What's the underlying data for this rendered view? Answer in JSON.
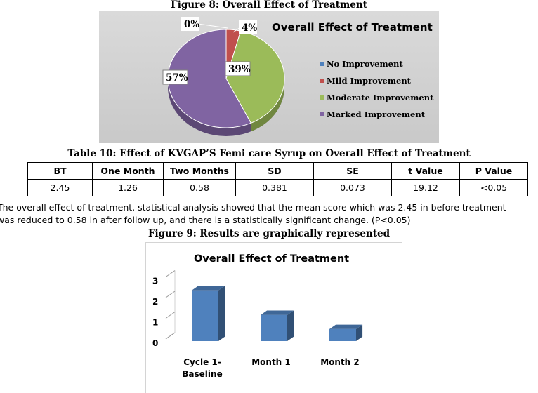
{
  "figure8": {
    "caption": "Figure 8: Overall Effect of Treatment"
  },
  "table10": {
    "caption": "Table 10: Effect of KVGAP’S Femi care Syrup on Overall Effect of Treatment",
    "headers": [
      "BT",
      "One Month",
      "Two Months",
      "SD",
      "SE",
      "t Value",
      "P Value"
    ],
    "row": [
      "2.45",
      "1.26",
      "0.58",
      "0.381",
      "0.073",
      "19.12",
      "<0.05"
    ]
  },
  "paragraph": {
    "line1": "The overall effect of treatment, statistical analysis showed that the mean score which was 2.45 in before treatment",
    "line2": "was reduced to 0.58 in after follow up, and there is a statistically significant change. (P<0.05)"
  },
  "figure9": {
    "caption": "Figure 9: Results are graphically represented"
  },
  "colors": {
    "no_improvement": "#4f81bd",
    "mild_improvement": "#c0504d",
    "moderate_improvement": "#9bbb59",
    "marked_improvement": "#8064a2",
    "bar": "#4f81bd"
  },
  "chart_data": [
    {
      "type": "pie",
      "title": "Overall Effect of Treatment",
      "labels": [
        "No Improvement",
        "Mild Improvement",
        "Moderate Improvement",
        "Marked Improvement"
      ],
      "values": [
        0,
        4,
        39,
        57
      ],
      "data_labels": [
        "0%",
        "4%",
        "39%",
        "57%"
      ],
      "legend": "right",
      "style": "3d"
    },
    {
      "type": "bar",
      "title": "Overall Effect of Treatment",
      "categories": [
        "Cycle 1- Baseline",
        "Month 1",
        "Month 2"
      ],
      "category_lines": [
        [
          "Cycle 1-",
          "Baseline"
        ],
        [
          "Month 1"
        ],
        [
          "Month 2"
        ]
      ],
      "values": [
        2.45,
        1.26,
        0.58
      ],
      "ylim": [
        0,
        3
      ],
      "yticks": [
        "0",
        "1",
        "2",
        "3"
      ],
      "grid": false,
      "style": "3d"
    }
  ]
}
